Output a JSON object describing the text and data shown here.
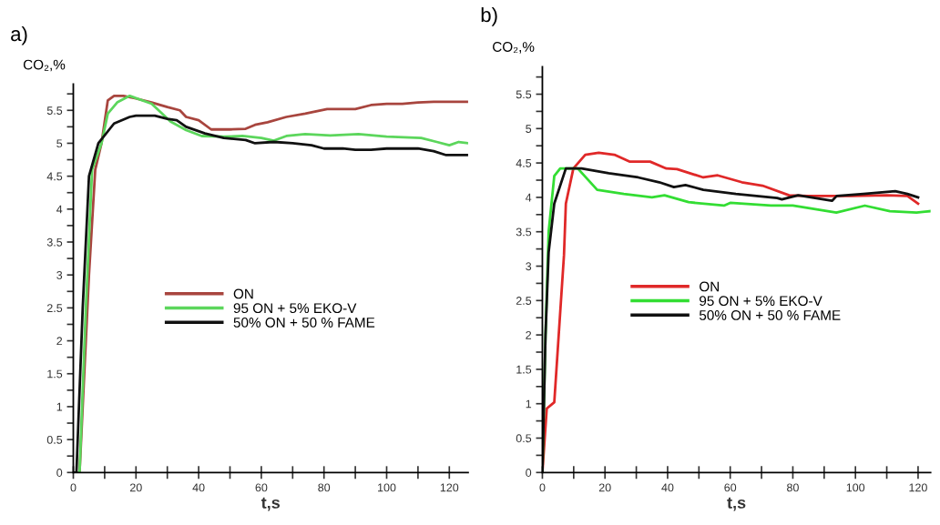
{
  "chart_data": [
    {
      "type": "line",
      "title": "a)",
      "xlabel": "t,s",
      "ylabel": "CO₂,%",
      "legend": "center",
      "grid": false,
      "marker": "none",
      "line_style": "solid",
      "xlim": [
        0,
        126
      ],
      "ylim": [
        0,
        5.9
      ],
      "xticks": [
        0,
        {
          "value": 10,
          "label": null
        },
        20,
        {
          "value": 30,
          "label": null
        },
        40,
        {
          "value": 50,
          "label": null
        },
        60,
        {
          "value": 70,
          "label": null
        },
        80,
        {
          "value": 90,
          "label": null
        },
        100,
        {
          "value": 110,
          "label": null
        },
        120
      ],
      "yticks": [
        0,
        {
          "value": 0.25,
          "label": null
        },
        0.5,
        {
          "value": 0.75,
          "label": null
        },
        1,
        {
          "value": 1.25,
          "label": null
        },
        1.5,
        {
          "value": 1.75,
          "label": null
        },
        2,
        {
          "value": 2.25,
          "label": null
        },
        2.5,
        {
          "value": 2.75,
          "label": null
        },
        3,
        {
          "value": 3.25,
          "label": null
        },
        3.5,
        {
          "value": 3.75,
          "label": null
        },
        4,
        {
          "value": 4.25,
          "label": null
        },
        4.5,
        {
          "value": 4.75,
          "label": null
        },
        5,
        {
          "value": 5.25,
          "label": null
        },
        5.5,
        {
          "value": 5.75,
          "label": null
        }
      ],
      "series": [
        {
          "name": "ON",
          "color": "#a8453e",
          "x": [
            0,
            2,
            5,
            7,
            9,
            11,
            13,
            16,
            20,
            25,
            30,
            34,
            36,
            40,
            44,
            50,
            55,
            58,
            62,
            68,
            74,
            81,
            90,
            95,
            100,
            105,
            110,
            115,
            120,
            126
          ],
          "values": [
            0,
            0,
            3.0,
            4.6,
            5.0,
            5.65,
            5.72,
            5.72,
            5.68,
            5.62,
            5.55,
            5.5,
            5.4,
            5.35,
            5.21,
            5.21,
            5.22,
            5.28,
            5.32,
            5.4,
            5.45,
            5.52,
            5.52,
            5.58,
            5.6,
            5.6,
            5.62,
            5.63,
            5.63,
            5.63
          ]
        },
        {
          "name": "95 ON + 5% EKO-V",
          "color": "#5cd65c",
          "x": [
            0,
            2,
            4,
            6,
            9,
            11,
            14,
            18,
            25,
            31,
            36,
            41,
            48,
            54,
            60,
            64,
            68,
            74,
            82,
            91,
            100,
            111,
            116,
            120,
            123,
            126
          ],
          "values": [
            0,
            0,
            2.5,
            4.6,
            5.0,
            5.45,
            5.62,
            5.72,
            5.6,
            5.33,
            5.2,
            5.11,
            5.1,
            5.11,
            5.08,
            5.04,
            5.11,
            5.14,
            5.12,
            5.14,
            5.1,
            5.08,
            5.02,
            4.97,
            5.02,
            5.0
          ]
        },
        {
          "name": "50% ON + 50 % FAME",
          "color": "#111111",
          "x": [
            0,
            1,
            3,
            5,
            8,
            13,
            18,
            20,
            26,
            30,
            33,
            36,
            42,
            48,
            55,
            58,
            64,
            70,
            76,
            80,
            86,
            90,
            95,
            100,
            110,
            115,
            119,
            126
          ],
          "values": [
            0,
            0,
            2.5,
            4.5,
            5.0,
            5.3,
            5.4,
            5.42,
            5.42,
            5.37,
            5.35,
            5.25,
            5.15,
            5.08,
            5.05,
            5.0,
            5.02,
            5.0,
            4.97,
            4.92,
            4.92,
            4.9,
            4.9,
            4.92,
            4.92,
            4.88,
            4.82,
            4.82
          ]
        }
      ]
    },
    {
      "type": "line",
      "title": "b)",
      "xlabel": "t,s",
      "ylabel": "CO₂,%",
      "legend": "center",
      "grid": false,
      "marker": "none",
      "line_style": "solid",
      "xlim": [
        0,
        124
      ],
      "ylim": [
        0,
        5.9
      ],
      "xticks": [
        0,
        {
          "value": 10,
          "label": null
        },
        20,
        {
          "value": 30,
          "label": null
        },
        40,
        {
          "value": 50,
          "label": null
        },
        60,
        {
          "value": 70,
          "label": null
        },
        80,
        {
          "value": 90,
          "label": null
        },
        100,
        {
          "value": 110,
          "label": null
        },
        120
      ],
      "yticks": [
        0,
        {
          "value": 0.25,
          "label": null
        },
        0.5,
        {
          "value": 0.75,
          "label": null
        },
        1,
        {
          "value": 1.25,
          "label": null
        },
        1.5,
        {
          "value": 1.75,
          "label": null
        },
        2,
        {
          "value": 2.25,
          "label": null
        },
        2.5,
        {
          "value": 2.75,
          "label": null
        },
        3,
        {
          "value": 3.25,
          "label": null
        },
        3.5,
        {
          "value": 3.75,
          "label": null
        },
        4,
        {
          "value": 4.25,
          "label": null
        },
        4.5,
        {
          "value": 4.75,
          "label": null
        },
        5,
        {
          "value": 5.25,
          "label": null
        },
        5.5,
        {
          "value": 5.75,
          "label": null
        }
      ],
      "series": [
        {
          "name": "ON",
          "color": "#e02828",
          "x": [
            0,
            1.4,
            3.8,
            6.9,
            7.5,
            9.9,
            13.7,
            18,
            23,
            27.8,
            34.4,
            39.6,
            43,
            51.4,
            56,
            63.7,
            70.3,
            78.8,
            84.5,
            93,
            98.7,
            110,
            116.6,
            120
          ],
          "values": [
            0,
            0.93,
            1.02,
            3.16,
            3.91,
            4.42,
            4.62,
            4.65,
            4.62,
            4.52,
            4.52,
            4.42,
            4.41,
            4.29,
            4.32,
            4.22,
            4.17,
            4.03,
            4.02,
            4.02,
            4.02,
            4.03,
            4.02,
            3.91
          ]
        },
        {
          "name": "95 ON + 5% EKO-V",
          "color": "#33dd33",
          "x": [
            0,
            1,
            2,
            3.8,
            5.7,
            11.3,
            17.5,
            26,
            35,
            39,
            46.7,
            58,
            60,
            73,
            80,
            93.9,
            103,
            111,
            119.5,
            124
          ],
          "values": [
            0,
            2.0,
            3.5,
            4.31,
            4.42,
            4.42,
            4.11,
            4.05,
            4.0,
            4.03,
            3.93,
            3.88,
            3.92,
            3.88,
            3.88,
            3.78,
            3.88,
            3.8,
            3.78,
            3.8
          ]
        },
        {
          "name": "50% ON + 50 % FAME",
          "color": "#111111",
          "x": [
            0,
            1,
            2,
            3.8,
            7.5,
            12.5,
            21.2,
            30.6,
            37.3,
            42,
            45.7,
            51.4,
            61.8,
            75,
            76.5,
            81.7,
            92.5,
            94,
            102.5,
            112.7,
            116.6,
            120
          ],
          "values": [
            0,
            2.0,
            3.2,
            3.91,
            4.42,
            4.42,
            4.35,
            4.29,
            4.22,
            4.15,
            4.18,
            4.11,
            4.05,
            3.99,
            3.97,
            4.03,
            3.95,
            4.02,
            4.05,
            4.09,
            4.05,
            4.0
          ]
        }
      ]
    }
  ]
}
